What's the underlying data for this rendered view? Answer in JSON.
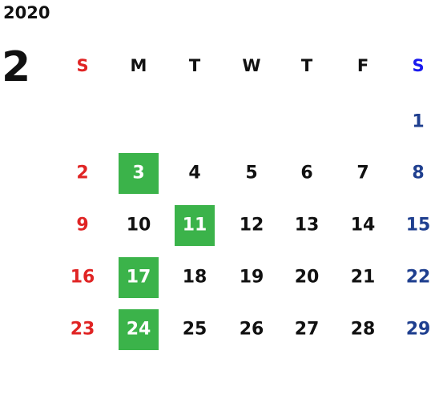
{
  "year": "2020",
  "month": "2",
  "weekdays": [
    "S",
    "M",
    "T",
    "W",
    "T",
    "F",
    "S"
  ],
  "weeks": [
    [
      null,
      null,
      null,
      null,
      null,
      null,
      1
    ],
    [
      2,
      {
        "day": 3,
        "highlight": true
      },
      4,
      5,
      6,
      7,
      8
    ],
    [
      9,
      10,
      {
        "day": 11,
        "highlight": true
      },
      12,
      13,
      14,
      15
    ],
    [
      16,
      {
        "day": 17,
        "highlight": true
      },
      18,
      19,
      20,
      21,
      22
    ],
    [
      23,
      {
        "day": 24,
        "highlight": true
      },
      25,
      26,
      27,
      28,
      29
    ]
  ],
  "colors": {
    "sunday": "#e02424",
    "saturday_header": "#1a1aee",
    "saturday": "#1f3f8f",
    "weekday": "#111111",
    "highlight": "#3bb34a",
    "highlight_text": "#ffffff"
  }
}
